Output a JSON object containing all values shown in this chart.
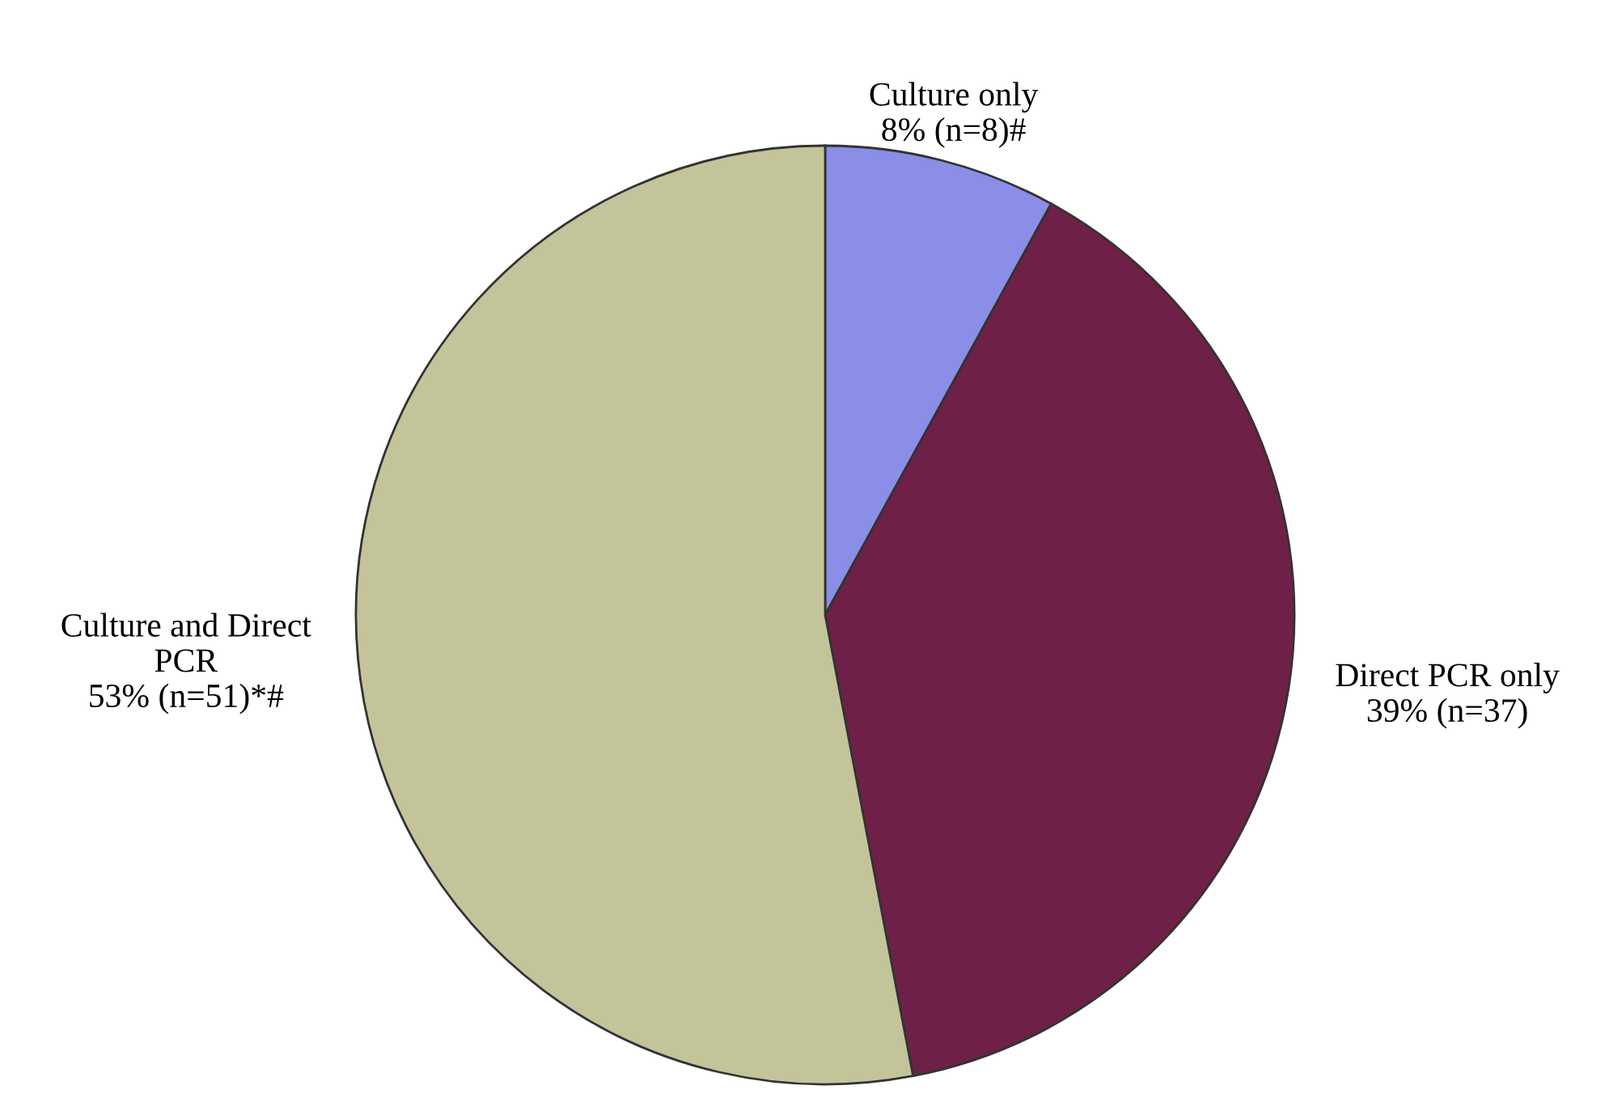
{
  "chart_data": {
    "type": "pie",
    "categories": [
      "Culture only",
      "Direct PCR only",
      "Culture and Direct\nPCR"
    ],
    "values": [
      8,
      39,
      53
    ],
    "value_labels": [
      "8% (n=8)#",
      "39% (n=37)",
      "53% (n=51)*#"
    ],
    "colors": [
      "#8a8ee6",
      "#6e2048",
      "#c4c49a"
    ],
    "legend": false
  }
}
